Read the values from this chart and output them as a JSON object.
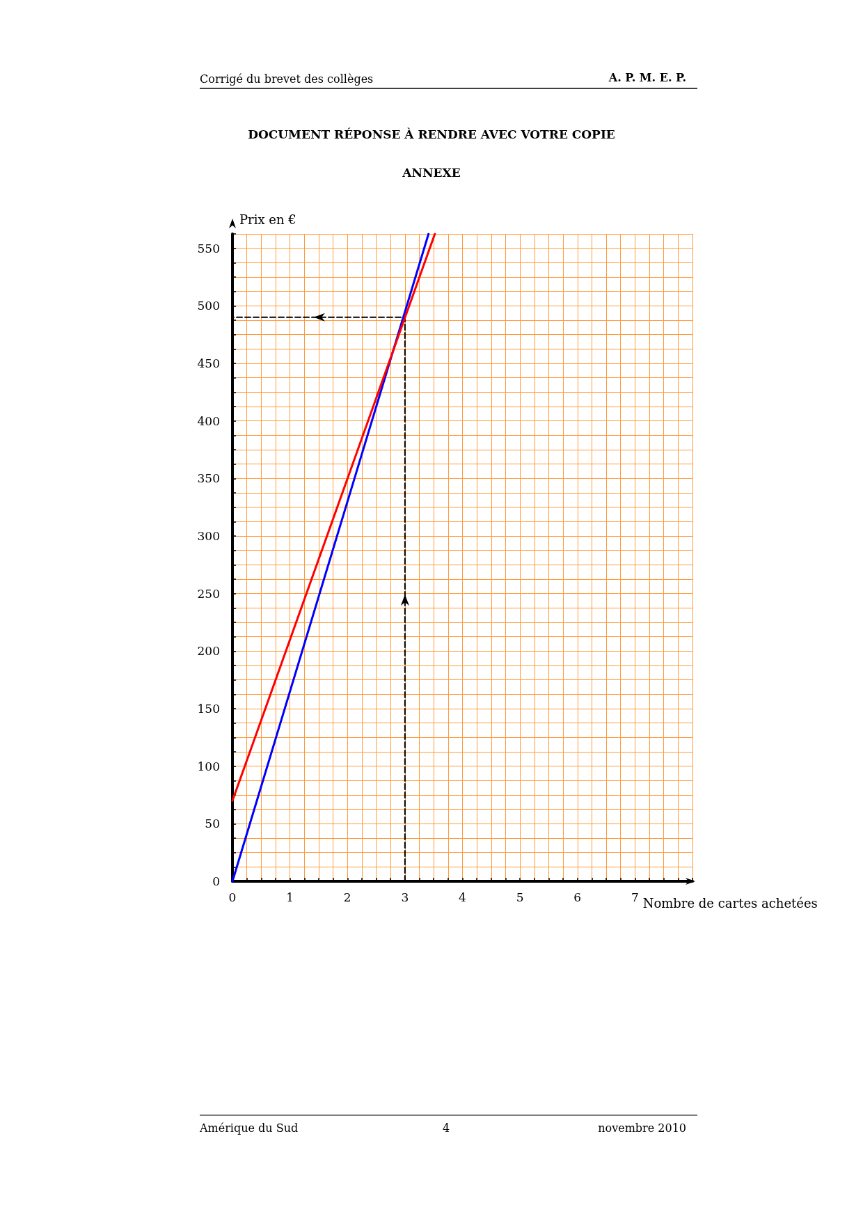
{
  "chart_data": {
    "type": "line",
    "title": "DOCUMENT RÉPONSE À RENDRE AVEC VOTRE COPIE",
    "subtitle": "ANNEXE",
    "xlabel": "Nombre de cartes achetées",
    "ylabel": "Prix en €",
    "annotations": [
      "Corrigé du brevet des collèges",
      "A. P. M. E. P.",
      "Amérique du Sud",
      "4",
      "novembre 2010"
    ],
    "series": [
      {
        "color": "#0000ff",
        "x": [
          0,
          3.41
        ],
        "values": [
          0,
          562.5
        ]
      },
      {
        "color": "#ff0000",
        "x": [
          0,
          3.52
        ],
        "values": [
          70,
          562.5
        ]
      },
      {
        "color": "#000000",
        "x": [
          3,
          3,
          0
        ],
        "values": [
          0,
          490,
          490
        ],
        "line_style": "dashed"
      }
    ],
    "xlim": [
      0,
      8
    ],
    "xticks": [
      0,
      {
        "value": 0.25,
        "label": null
      },
      {
        "value": 0.5,
        "label": null
      },
      {
        "value": 0.75,
        "label": null
      },
      1,
      {
        "value": 1.25,
        "label": null
      },
      {
        "value": 1.5,
        "label": null
      },
      {
        "value": 1.75,
        "label": null
      },
      2,
      {
        "value": 2.25,
        "label": null
      },
      {
        "value": 2.5,
        "label": null
      },
      {
        "value": 2.75,
        "label": null
      },
      3,
      {
        "value": 3.25,
        "label": null
      },
      {
        "value": 3.5,
        "label": null
      },
      {
        "value": 3.75,
        "label": null
      },
      4,
      {
        "value": 4.25,
        "label": null
      },
      {
        "value": 4.5,
        "label": null
      },
      {
        "value": 4.75,
        "label": null
      },
      5,
      {
        "value": 5.25,
        "label": null
      },
      {
        "value": 5.5,
        "label": null
      },
      {
        "value": 5.75,
        "label": null
      },
      6,
      {
        "value": 6.25,
        "label": null
      },
      {
        "value": 6.5,
        "label": null
      },
      {
        "value": 6.75,
        "label": null
      },
      7,
      {
        "value": 7.25,
        "label": null
      },
      {
        "value": 7.5,
        "label": null
      },
      {
        "value": 7.75,
        "label": null
      },
      {
        "value": 8,
        "label": null
      }
    ],
    "ylim": [
      0,
      562.5
    ],
    "yticks": [
      0,
      {
        "value": 12.5,
        "label": null
      },
      {
        "value": 25,
        "label": null
      },
      {
        "value": 37.5,
        "label": null
      },
      50,
      {
        "value": 62.5,
        "label": null
      },
      {
        "value": 75,
        "label": null
      },
      {
        "value": 87.5,
        "label": null
      },
      100,
      {
        "value": 112.5,
        "label": null
      },
      {
        "value": 125,
        "label": null
      },
      {
        "value": 137.5,
        "label": null
      },
      150,
      {
        "value": 162.5,
        "label": null
      },
      {
        "value": 175,
        "label": null
      },
      {
        "value": 187.5,
        "label": null
      },
      200,
      {
        "value": 212.5,
        "label": null
      },
      {
        "value": 225,
        "label": null
      },
      {
        "value": 237.5,
        "label": null
      },
      250,
      {
        "value": 262.5,
        "label": null
      },
      {
        "value": 275,
        "label": null
      },
      {
        "value": 287.5,
        "label": null
      },
      300,
      {
        "value": 312.5,
        "label": null
      },
      {
        "value": 325,
        "label": null
      },
      {
        "value": 337.5,
        "label": null
      },
      350,
      {
        "value": 362.5,
        "label": null
      },
      {
        "value": 375,
        "label": null
      },
      {
        "value": 387.5,
        "label": null
      },
      400,
      {
        "value": 412.5,
        "label": null
      },
      {
        "value": 425,
        "label": null
      },
      {
        "value": 437.5,
        "label": null
      },
      450,
      {
        "value": 462.5,
        "label": null
      },
      {
        "value": 475,
        "label": null
      },
      {
        "value": 487.5,
        "label": null
      },
      500,
      {
        "value": 512.5,
        "label": null
      },
      {
        "value": 525,
        "label": null
      },
      {
        "value": 537.5,
        "label": null
      },
      550,
      {
        "value": 562.5,
        "label": null
      }
    ],
    "grid": true,
    "marker": "none",
    "line_style": "solid"
  }
}
